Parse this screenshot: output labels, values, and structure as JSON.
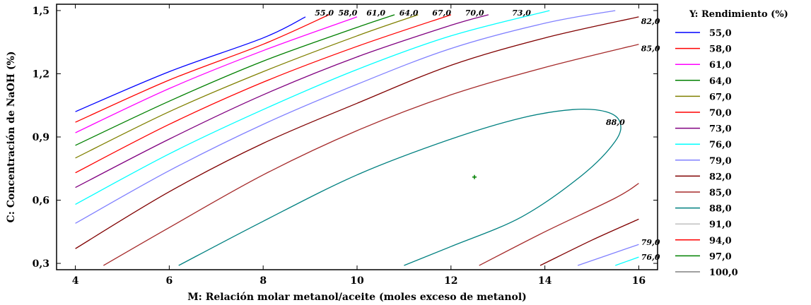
{
  "chart_data": {
    "type": "contour",
    "xlabel": "M: Relación molar metanol/aceite (moles exceso de metanol)",
    "ylabel": "C: Concentración de NaOH (%)",
    "xlim": [
      3.6,
      16.4
    ],
    "ylim": [
      0.27,
      1.53
    ],
    "xticks": [
      "4",
      "6",
      "8",
      "10",
      "12",
      "14",
      "16"
    ],
    "yticks": [
      "0,3",
      "0,6",
      "0,9",
      "1,2",
      "1,5"
    ],
    "xtick_values": [
      4,
      6,
      8,
      10,
      12,
      14,
      16
    ],
    "ytick_values": [
      0.3,
      0.6,
      0.9,
      1.2,
      1.5
    ],
    "legend_title": "Y: Rendimiento (%)",
    "legend_position": "right",
    "optimum_point": {
      "x": 12.5,
      "y": 0.71
    },
    "levels": [
      {
        "label": "55,0",
        "color": "#0000ff",
        "points": [
          [
            4.0,
            1.02
          ],
          [
            6.0,
            1.21
          ],
          [
            8.0,
            1.37
          ],
          [
            8.9,
            1.47
          ]
        ]
      },
      {
        "label": "58,0",
        "color": "#ff0000",
        "points": [
          [
            4.0,
            0.97
          ],
          [
            6.0,
            1.17
          ],
          [
            8.0,
            1.34
          ],
          [
            9.4,
            1.48
          ]
        ]
      },
      {
        "label": "61,0",
        "color": "#ff00ff",
        "points": [
          [
            4.0,
            0.92
          ],
          [
            6.0,
            1.13
          ],
          [
            8.0,
            1.31
          ],
          [
            10.0,
            1.47
          ]
        ]
      },
      {
        "label": "64,0",
        "color": "#008000",
        "points": [
          [
            4.0,
            0.86
          ],
          [
            6.0,
            1.07
          ],
          [
            8.0,
            1.26
          ],
          [
            10.0,
            1.42
          ],
          [
            10.8,
            1.48
          ]
        ]
      },
      {
        "label": "67,0",
        "color": "#808000",
        "points": [
          [
            4.0,
            0.8
          ],
          [
            6.0,
            1.02
          ],
          [
            8.0,
            1.21
          ],
          [
            10.0,
            1.38
          ],
          [
            11.3,
            1.48
          ]
        ]
      },
      {
        "label": "70,0",
        "color": "#ff0000",
        "points": [
          [
            4.0,
            0.73
          ],
          [
            6.0,
            0.96
          ],
          [
            8.0,
            1.16
          ],
          [
            10.0,
            1.33
          ],
          [
            12.0,
            1.48
          ]
        ]
      },
      {
        "label": "73,0",
        "color": "#800080",
        "points": [
          [
            4.0,
            0.66
          ],
          [
            6.0,
            0.89
          ],
          [
            8.0,
            1.1
          ],
          [
            10.0,
            1.28
          ],
          [
            12.0,
            1.43
          ],
          [
            12.8,
            1.48
          ]
        ]
      },
      {
        "label": "76,0",
        "color": "#00ffff",
        "points": [
          [
            4.0,
            0.58
          ],
          [
            6.0,
            0.82
          ],
          [
            8.0,
            1.03
          ],
          [
            10.0,
            1.22
          ],
          [
            12.0,
            1.38
          ],
          [
            14.1,
            1.5
          ]
        ]
      },
      {
        "label": "79,0",
        "color": "#8080ff",
        "points": [
          [
            4.0,
            0.49
          ],
          [
            6.0,
            0.74
          ],
          [
            8.0,
            0.96
          ],
          [
            10.0,
            1.15
          ],
          [
            12.0,
            1.32
          ],
          [
            14.0,
            1.44
          ],
          [
            15.5,
            1.5
          ]
        ]
      },
      {
        "label": "82,0",
        "color": "#800000",
        "points": [
          [
            4.0,
            0.37
          ],
          [
            6.0,
            0.64
          ],
          [
            8.0,
            0.87
          ],
          [
            10.0,
            1.06
          ],
          [
            12.0,
            1.24
          ],
          [
            14.0,
            1.37
          ],
          [
            16.0,
            1.47
          ]
        ]
      },
      {
        "label": "85,0",
        "color": "#a52a2a",
        "points": [
          [
            4.6,
            0.29
          ],
          [
            6.0,
            0.47
          ],
          [
            8.0,
            0.72
          ],
          [
            10.0,
            0.93
          ],
          [
            12.0,
            1.1
          ],
          [
            14.0,
            1.23
          ],
          [
            16.0,
            1.34
          ]
        ]
      },
      {
        "label": "88,0",
        "color": "#008080",
        "closed": false,
        "points": [
          [
            6.2,
            0.29
          ],
          [
            8.0,
            0.5
          ],
          [
            10.0,
            0.72
          ],
          [
            12.0,
            0.89
          ],
          [
            13.5,
            0.99
          ],
          [
            14.6,
            1.03
          ],
          [
            15.3,
            1.02
          ],
          [
            15.6,
            0.97
          ],
          [
            15.5,
            0.88
          ],
          [
            14.8,
            0.72
          ],
          [
            13.5,
            0.52
          ],
          [
            12.0,
            0.38
          ],
          [
            11.0,
            0.29
          ]
        ]
      },
      {
        "label": "85,0",
        "color": "#a52a2a",
        "points": [
          [
            12.6,
            0.29
          ],
          [
            14.0,
            0.45
          ],
          [
            15.5,
            0.61
          ],
          [
            16.0,
            0.68
          ]
        ]
      },
      {
        "label": "82,0",
        "color": "#800000",
        "points": [
          [
            13.9,
            0.29
          ],
          [
            15.0,
            0.41
          ],
          [
            16.0,
            0.51
          ]
        ]
      },
      {
        "label": "79,0",
        "color": "#8080ff",
        "points": [
          [
            14.7,
            0.29
          ],
          [
            16.0,
            0.39
          ]
        ]
      },
      {
        "label": "76,0",
        "color": "#00ffff",
        "points": [
          [
            15.5,
            0.29
          ],
          [
            16.0,
            0.33
          ]
        ]
      }
    ],
    "contour_labels": [
      {
        "text": "55,0",
        "x": 9.1,
        "y": 1.49
      },
      {
        "text": "58,0",
        "x": 9.6,
        "y": 1.49
      },
      {
        "text": "61,0",
        "x": 10.2,
        "y": 1.49
      },
      {
        "text": "64,0",
        "x": 10.9,
        "y": 1.49
      },
      {
        "text": "67,0",
        "x": 11.6,
        "y": 1.49
      },
      {
        "text": "70,0",
        "x": 12.3,
        "y": 1.49
      },
      {
        "text": "73,0",
        "x": 13.3,
        "y": 1.49
      },
      {
        "text": "82,0",
        "x": 16.05,
        "y": 1.45
      },
      {
        "text": "85,0",
        "x": 16.05,
        "y": 1.32
      },
      {
        "text": "88,0",
        "x": 15.3,
        "y": 0.97
      },
      {
        "text": "79,0",
        "x": 16.05,
        "y": 0.4
      },
      {
        "text": "76,0",
        "x": 16.05,
        "y": 0.33
      }
    ],
    "legend_items": [
      {
        "label": "55,0",
        "color": "#0000ff"
      },
      {
        "label": "58,0",
        "color": "#ff0000"
      },
      {
        "label": "61,0",
        "color": "#ff00ff"
      },
      {
        "label": "64,0",
        "color": "#008000"
      },
      {
        "label": "67,0",
        "color": "#808000"
      },
      {
        "label": "70,0",
        "color": "#ff0000"
      },
      {
        "label": "73,0",
        "color": "#800080"
      },
      {
        "label": "76,0",
        "color": "#00ffff"
      },
      {
        "label": "79,0",
        "color": "#8080ff"
      },
      {
        "label": "82,0",
        "color": "#800000"
      },
      {
        "label": "85,0",
        "color": "#a52a2a"
      },
      {
        "label": "88,0",
        "color": "#008080"
      },
      {
        "label": "91,0",
        "color": "#c0c0c0"
      },
      {
        "label": "94,0",
        "color": "#ff0000"
      },
      {
        "label": "97,0",
        "color": "#008000"
      },
      {
        "label": "100,0",
        "color": "#808080"
      }
    ]
  }
}
